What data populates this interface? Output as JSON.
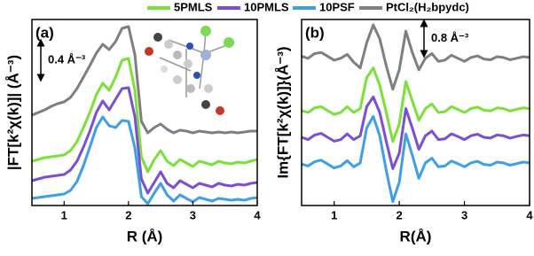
{
  "chart_data": [
    {
      "type": "line",
      "panel_label": "(a)",
      "x_label": "R (Å)",
      "y_label": "|FT[k²χ(k)]| (Å⁻³)",
      "annotation": "0.4 Å⁻³",
      "scale_bar": 0.4,
      "x": [
        0.5,
        0.6,
        0.7,
        0.8,
        0.9,
        1.0,
        1.1,
        1.2,
        1.3,
        1.4,
        1.5,
        1.6,
        1.7,
        1.8,
        1.9,
        2.0,
        2.1,
        2.2,
        2.3,
        2.4,
        2.5,
        2.6,
        2.7,
        2.8,
        2.9,
        3.0,
        3.1,
        3.2,
        3.3,
        3.4,
        3.5,
        3.6,
        3.7,
        3.8,
        3.9,
        4.0
      ],
      "xlim": [
        0.5,
        4
      ],
      "xticks": [
        1,
        2,
        3,
        4
      ],
      "ylim": [
        0,
        2.1
      ],
      "series": [
        {
          "name": "5PMLS",
          "color": "#7be03c",
          "values": [
            0.5,
            0.52,
            0.54,
            0.55,
            0.56,
            0.57,
            0.62,
            0.72,
            0.88,
            1.05,
            1.25,
            1.38,
            1.3,
            1.45,
            1.64,
            1.66,
            1.3,
            0.55,
            0.38,
            0.52,
            0.62,
            0.5,
            0.45,
            0.52,
            0.48,
            0.44,
            0.5,
            0.48,
            0.46,
            0.5,
            0.48,
            0.47,
            0.49,
            0.48,
            0.5,
            0.52
          ]
        },
        {
          "name": "10PMLS",
          "color": "#7a4fd4",
          "values": [
            0.28,
            0.3,
            0.32,
            0.33,
            0.34,
            0.35,
            0.4,
            0.5,
            0.66,
            0.84,
            1.05,
            1.18,
            1.08,
            1.2,
            1.32,
            1.33,
            1.0,
            0.3,
            0.14,
            0.26,
            0.38,
            0.25,
            0.2,
            0.28,
            0.24,
            0.2,
            0.25,
            0.23,
            0.21,
            0.25,
            0.23,
            0.22,
            0.24,
            0.23,
            0.25,
            0.26
          ]
        },
        {
          "name": "10PSF",
          "color": "#3f9fe6",
          "values": [
            0.08,
            0.09,
            0.1,
            0.11,
            0.12,
            0.13,
            0.17,
            0.27,
            0.45,
            0.66,
            0.88,
            1.0,
            0.9,
            0.88,
            0.96,
            0.95,
            0.65,
            0.1,
            0.02,
            0.14,
            0.25,
            0.12,
            0.05,
            0.12,
            0.08,
            0.04,
            0.09,
            0.07,
            0.05,
            0.08,
            0.07,
            0.06,
            0.07,
            0.06,
            0.08,
            0.09
          ]
        },
        {
          "name": "PtCl₂(H₂bpydc)",
          "color": "#7f7f7f",
          "values": [
            1.02,
            1.05,
            1.08,
            1.12,
            1.15,
            1.17,
            1.22,
            1.32,
            1.45,
            1.58,
            1.72,
            1.82,
            1.76,
            1.85,
            2.0,
            2.02,
            1.7,
            0.95,
            0.82,
            0.88,
            0.92,
            0.86,
            0.82,
            0.85,
            0.84,
            0.82,
            0.84,
            0.83,
            0.82,
            0.83,
            0.82,
            0.83,
            0.82,
            0.83,
            0.84,
            0.84
          ]
        }
      ]
    },
    {
      "type": "line",
      "panel_label": "(b)",
      "x_label": "R(Å)",
      "y_label": "Im{FT[k²χ(k)]}(Å⁻³)",
      "annotation": "0.8 Å⁻³",
      "scale_bar": 0.8,
      "x": [
        0.5,
        0.6,
        0.7,
        0.8,
        0.9,
        1.0,
        1.1,
        1.2,
        1.3,
        1.4,
        1.5,
        1.6,
        1.7,
        1.8,
        1.9,
        2.0,
        2.1,
        2.2,
        2.3,
        2.4,
        2.5,
        2.6,
        2.7,
        2.8,
        2.9,
        3.0,
        3.1,
        3.2,
        3.3,
        3.4,
        3.5,
        3.6,
        3.7,
        3.8,
        3.9,
        4.0
      ],
      "xlim": [
        0.5,
        4
      ],
      "xticks": [
        1,
        2,
        3,
        4
      ],
      "ylim": [
        0,
        4.8
      ],
      "series": [
        {
          "color": "#7be03c",
          "values": [
            2.45,
            2.4,
            2.52,
            2.55,
            2.45,
            2.35,
            2.4,
            2.55,
            2.4,
            2.5,
            3.3,
            3.55,
            3.1,
            2.4,
            1.65,
            2.1,
            3.2,
            2.7,
            2.2,
            2.5,
            2.62,
            2.4,
            2.42,
            2.55,
            2.48,
            2.4,
            2.5,
            2.54,
            2.46,
            2.44,
            2.52,
            2.5,
            2.44,
            2.48,
            2.52,
            2.5
          ]
        },
        {
          "color": "#7a4fd4",
          "values": [
            1.76,
            1.7,
            1.82,
            1.86,
            1.76,
            1.66,
            1.7,
            1.85,
            1.7,
            1.8,
            2.55,
            2.8,
            2.4,
            1.65,
            0.95,
            1.35,
            2.5,
            2.0,
            1.45,
            1.8,
            1.92,
            1.7,
            1.72,
            1.85,
            1.78,
            1.7,
            1.8,
            1.84,
            1.76,
            1.74,
            1.82,
            1.8,
            1.74,
            1.78,
            1.82,
            1.8
          ]
        },
        {
          "color": "#3f9fe6",
          "values": [
            1.07,
            1.02,
            1.13,
            1.17,
            1.07,
            0.97,
            1.02,
            1.16,
            1.0,
            1.1,
            2.0,
            2.3,
            1.8,
            0.9,
            0.1,
            0.6,
            1.85,
            1.3,
            0.7,
            1.1,
            1.22,
            1.0,
            1.02,
            1.15,
            1.08,
            1.0,
            1.1,
            1.14,
            1.06,
            1.04,
            1.12,
            1.1,
            1.04,
            1.08,
            1.12,
            1.1
          ]
        },
        {
          "color": "#7f7f7f",
          "values": [
            3.85,
            3.8,
            3.92,
            3.95,
            3.85,
            3.75,
            3.8,
            3.9,
            3.7,
            3.55,
            4.2,
            4.66,
            4.3,
            3.6,
            3.0,
            3.5,
            4.5,
            3.95,
            3.5,
            3.8,
            3.92,
            3.72,
            3.75,
            3.88,
            3.8,
            3.72,
            3.82,
            3.86,
            3.78,
            3.76,
            3.84,
            3.82,
            3.76,
            3.8,
            3.84,
            3.82
          ]
        }
      ]
    }
  ]
}
